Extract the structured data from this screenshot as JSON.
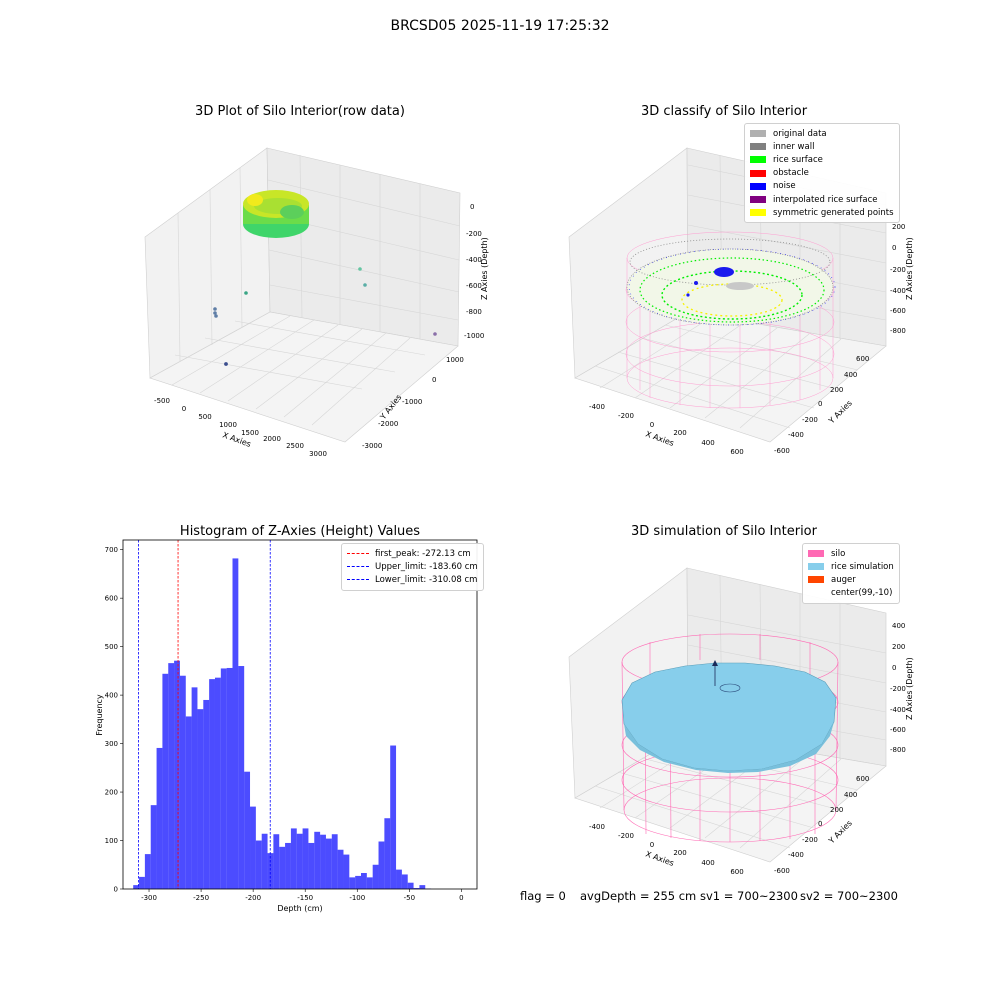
{
  "figure_title": "BRCSD05 2025-11-19 17:25:32",
  "colors": {
    "hist_bar": "#0000ff",
    "peak_line": "#ff0000",
    "limit_line": "#0000ff",
    "silo": "#ff69b4",
    "rice_sim": "#87ceeb",
    "auger": "#ff4500",
    "orig": "#b0b0b0",
    "inner_wall": "#808080",
    "rice_surface": "#00ff00",
    "obstacle": "#ff0000",
    "noise": "#0000ff",
    "interp": "#800080",
    "sym": "#ffff00"
  },
  "panel1": {
    "title": "3D Plot of Silo Interior(row data)",
    "xlabel": "X Axies",
    "ylabel": "Y Axies",
    "zlabel": "Z Axies (Depth)",
    "x_ticks": [
      "-500",
      "0",
      "500",
      "1000",
      "1500",
      "2000",
      "2500",
      "3000"
    ],
    "y_ticks": [
      "1000",
      "0",
      "-1000",
      "-2000",
      "-3000"
    ],
    "z_ticks": [
      "0",
      "-200",
      "-400",
      "-600",
      "-800",
      "-1000"
    ]
  },
  "panel2": {
    "title": "3D classify of Silo Interior",
    "xlabel": "X Axies",
    "ylabel": "Y Axies",
    "zlabel": "Z Axies (Depth)",
    "x_ticks": [
      "-400",
      "-200",
      "0",
      "200",
      "400",
      "600"
    ],
    "y_ticks": [
      "600",
      "400",
      "200",
      "0",
      "-200",
      "-400",
      "-600"
    ],
    "z_ticks": [
      "200",
      "0",
      "-200",
      "-400",
      "-600",
      "-800"
    ],
    "legend": [
      {
        "label": "original data",
        "color": "#b0b0b0"
      },
      {
        "label": "inner wall",
        "color": "#808080"
      },
      {
        "label": "rice surface",
        "color": "#00ff00"
      },
      {
        "label": "obstacle",
        "color": "#ff0000"
      },
      {
        "label": "noise",
        "color": "#0000ff"
      },
      {
        "label": "interpolated rice surface",
        "color": "#800080"
      },
      {
        "label": "symmetric generated points",
        "color": "#ffff00"
      }
    ]
  },
  "panel4": {
    "title": "3D simulation of Silo Interior",
    "xlabel": "X Axies",
    "ylabel": "Y Axies",
    "zlabel": "Z Axies (Depth)",
    "x_ticks": [
      "-400",
      "-200",
      "0",
      "200",
      "400",
      "600"
    ],
    "y_ticks": [
      "600",
      "400",
      "200",
      "0",
      "-200",
      "-400",
      "-600"
    ],
    "z_ticks": [
      "400",
      "200",
      "0",
      "-200",
      "-400",
      "-600",
      "-800"
    ],
    "legend": [
      {
        "label": "silo",
        "color": "#ff69b4"
      },
      {
        "label": "rice simulation",
        "color": "#87ceeb"
      },
      {
        "label": "auger",
        "color": "#ff4500"
      },
      {
        "label": "center(99,-10)",
        "color": ""
      }
    ]
  },
  "footer": {
    "flag": "flag = 0",
    "avg": "avgDepth = 255 cm",
    "sv1": "sv1 = 700~2300",
    "sv2": "sv2 = 700~2300"
  },
  "chart_data": {
    "type": "bar",
    "title": "Histogram of Z-Axies (Height) Values",
    "xlabel": "Depth (cm)",
    "ylabel": "Frequency",
    "xlim": [
      -325,
      15
    ],
    "ylim": [
      0,
      720
    ],
    "xticks": [
      -300,
      -250,
      -200,
      -150,
      -100,
      -50,
      0
    ],
    "yticks": [
      0,
      100,
      200,
      300,
      400,
      500,
      600,
      700
    ],
    "bin_start": -315.2,
    "bin_width": 5.61,
    "values": [
      8,
      25,
      72,
      173,
      291,
      444,
      466,
      471,
      440,
      356,
      416,
      371,
      390,
      433,
      436,
      455,
      456,
      682,
      460,
      242,
      170,
      100,
      114,
      74,
      113,
      87,
      95,
      125,
      114,
      125,
      95,
      118,
      112,
      104,
      113,
      81,
      71,
      24,
      27,
      33,
      24,
      50,
      98,
      146,
      296,
      40,
      30,
      13,
      2,
      8,
      1
    ],
    "lines": [
      {
        "label": "first_peak: -272.13 cm",
        "x": -272.13,
        "color": "#ff0000"
      },
      {
        "label": "Upper_limit: -183.60 cm",
        "x": -183.6,
        "color": "#0000ff"
      },
      {
        "label": "Lower_limit: -310.08 cm",
        "x": -310.08,
        "color": "#0000ff"
      }
    ]
  }
}
